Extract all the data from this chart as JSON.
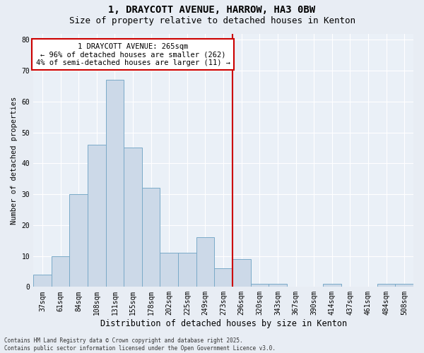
{
  "title1": "1, DRAYCOTT AVENUE, HARROW, HA3 0BW",
  "title2": "Size of property relative to detached houses in Kenton",
  "xlabel": "Distribution of detached houses by size in Kenton",
  "ylabel": "Number of detached properties",
  "bin_labels": [
    "37sqm",
    "61sqm",
    "84sqm",
    "108sqm",
    "131sqm",
    "155sqm",
    "178sqm",
    "202sqm",
    "225sqm",
    "249sqm",
    "273sqm",
    "296sqm",
    "320sqm",
    "343sqm",
    "367sqm",
    "390sqm",
    "414sqm",
    "437sqm",
    "461sqm",
    "484sqm",
    "508sqm"
  ],
  "bar_heights": [
    4,
    10,
    30,
    46,
    67,
    45,
    32,
    11,
    11,
    16,
    6,
    9,
    1,
    1,
    0,
    0,
    1,
    0,
    0,
    1,
    1
  ],
  "bar_color": "#ccd9e8",
  "bar_edge_color": "#7aaac8",
  "vline_x": 10.5,
  "vline_color": "#cc0000",
  "annotation_text": "1 DRAYCOTT AVENUE: 265sqm\n← 96% of detached houses are smaller (262)\n4% of semi-detached houses are larger (11) →",
  "annotation_box_color": "#cc0000",
  "ylim": [
    0,
    82
  ],
  "yticks": [
    0,
    10,
    20,
    30,
    40,
    50,
    60,
    70,
    80
  ],
  "footer": "Contains HM Land Registry data © Crown copyright and database right 2025.\nContains public sector information licensed under the Open Government Licence v3.0.",
  "background_color": "#e8edf4",
  "plot_bg_color": "#eaf0f7",
  "grid_color": "#ffffff",
  "title1_fontsize": 10,
  "title2_fontsize": 9,
  "xlabel_fontsize": 8.5,
  "ylabel_fontsize": 7.5,
  "tick_fontsize": 7,
  "annotation_fontsize": 7.5,
  "footer_fontsize": 5.5
}
